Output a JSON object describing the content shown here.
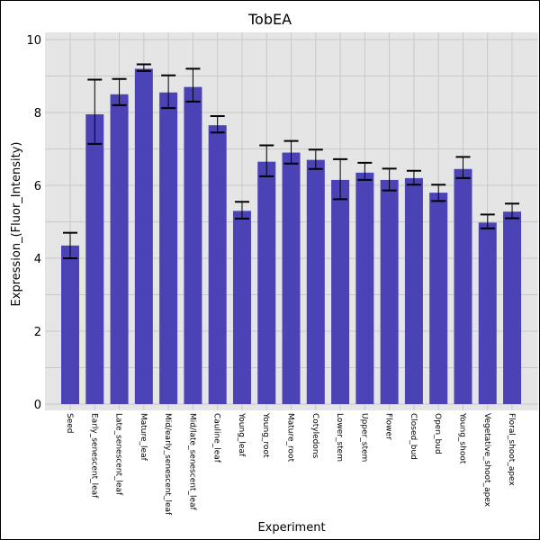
{
  "chart_data": {
    "type": "bar",
    "title": "TobEA",
    "xlabel": "Experiment",
    "ylabel": "Expression_(Fluor_Intensity)",
    "ylim": [
      0,
      10
    ],
    "yticks": [
      "0",
      "2",
      "4",
      "6",
      "8",
      "10"
    ],
    "grid": true,
    "bar_color": "#4a42b5",
    "background_color": "#e5e5e5",
    "categories": [
      "Seed",
      "Early_senescent_leaf",
      "Late_senescent_leaf",
      "Mature_leaf",
      "Mid/early_senescent_leaf",
      "Mid/late_senescent_leaf",
      "Cauline_leaf",
      "Young_leaf",
      "Young_root",
      "Mature_root",
      "Cotyledons",
      "Lower_stem",
      "Upper_stem",
      "Flower",
      "Closed_bud",
      "Open_bud",
      "Young_shoot",
      "Vegetative_shoot_apex",
      "Floral_shoot_apex"
    ],
    "values": [
      4.35,
      7.95,
      8.5,
      9.2,
      8.55,
      8.7,
      7.65,
      5.3,
      6.65,
      6.9,
      6.7,
      6.15,
      6.35,
      6.15,
      6.2,
      5.8,
      6.45,
      4.98,
      5.28
    ],
    "error_low": [
      4.0,
      7.14,
      8.2,
      9.14,
      8.12,
      8.3,
      7.45,
      5.09,
      6.25,
      6.6,
      6.45,
      5.62,
      6.15,
      5.86,
      6.02,
      5.57,
      6.2,
      4.82,
      5.1
    ],
    "error_high": [
      4.7,
      8.9,
      8.92,
      9.32,
      9.02,
      9.2,
      7.9,
      5.55,
      7.1,
      7.22,
      6.98,
      6.72,
      6.62,
      6.46,
      6.4,
      6.02,
      6.78,
      5.2,
      5.5
    ]
  }
}
